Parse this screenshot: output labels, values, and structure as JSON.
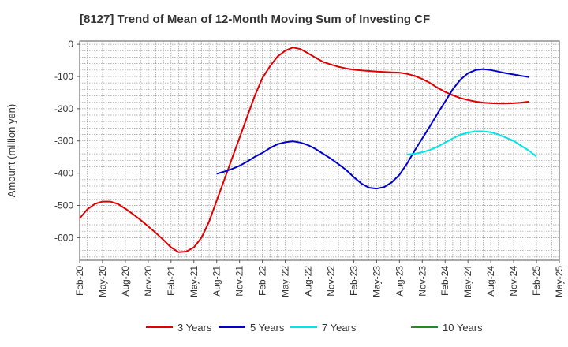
{
  "chart_data": {
    "type": "line",
    "title": "[8127]  Trend of Mean of 12-Month Moving Sum of Investing CF",
    "xlabel": "",
    "ylabel": "Amount (million yen)",
    "ylim": [
      -670,
      10
    ],
    "yticks": [
      0,
      -100,
      -200,
      -300,
      -400,
      -500,
      -600
    ],
    "ytick_labels": [
      "0",
      "-100",
      "-200",
      "-300",
      "-400",
      "-500",
      "-600"
    ],
    "xticks": [
      "Feb-20",
      "May-20",
      "Aug-20",
      "Nov-20",
      "Feb-21",
      "May-21",
      "Aug-21",
      "Nov-21",
      "Feb-22",
      "May-22",
      "Aug-22",
      "Nov-22",
      "Feb-23",
      "May-23",
      "Aug-23",
      "Nov-23",
      "Feb-24",
      "May-24",
      "Aug-24",
      "Nov-24",
      "Feb-25",
      "May-25"
    ],
    "x_index_range": [
      0,
      63
    ],
    "grid": true,
    "legend_position": "bottom",
    "series": [
      {
        "name": "3 Years",
        "color": "#e00000",
        "x_start": 0,
        "values": [
          -540,
          -512,
          -495,
          -488,
          -488,
          -495,
          -510,
          -527,
          -545,
          -565,
          -585,
          -607,
          -630,
          -645,
          -643,
          -630,
          -600,
          -550,
          -485,
          -420,
          -355,
          -290,
          -225,
          -160,
          -105,
          -68,
          -38,
          -20,
          -10,
          -15,
          -28,
          -42,
          -55,
          -63,
          -70,
          -75,
          -79,
          -81,
          -83,
          -85,
          -86,
          -87,
          -88,
          -92,
          -98,
          -108,
          -120,
          -135,
          -148,
          -158,
          -167,
          -173,
          -178,
          -181,
          -183,
          -184,
          -184,
          -183,
          -181,
          -178
        ]
      },
      {
        "name": "5 Years",
        "color": "#0000cc",
        "x_start": 18,
        "values": [
          -402,
          -395,
          -387,
          -377,
          -364,
          -349,
          -337,
          -322,
          -310,
          -304,
          -301,
          -305,
          -313,
          -325,
          -340,
          -355,
          -372,
          -390,
          -412,
          -432,
          -445,
          -448,
          -443,
          -428,
          -405,
          -370,
          -330,
          -292,
          -255,
          -215,
          -178,
          -140,
          -110,
          -90,
          -80,
          -77,
          -80,
          -85,
          -90,
          -94,
          -98,
          -102
        ]
      },
      {
        "name": "7 Years",
        "color": "#00e5e5",
        "x_start": 43,
        "values": [
          -342,
          -340,
          -335,
          -328,
          -318,
          -305,
          -292,
          -281,
          -274,
          -270,
          -270,
          -273,
          -280,
          -290,
          -300,
          -315,
          -330,
          -348
        ]
      },
      {
        "name": "10 Years",
        "color": "#228b22",
        "x_start": 0,
        "values": []
      }
    ]
  }
}
